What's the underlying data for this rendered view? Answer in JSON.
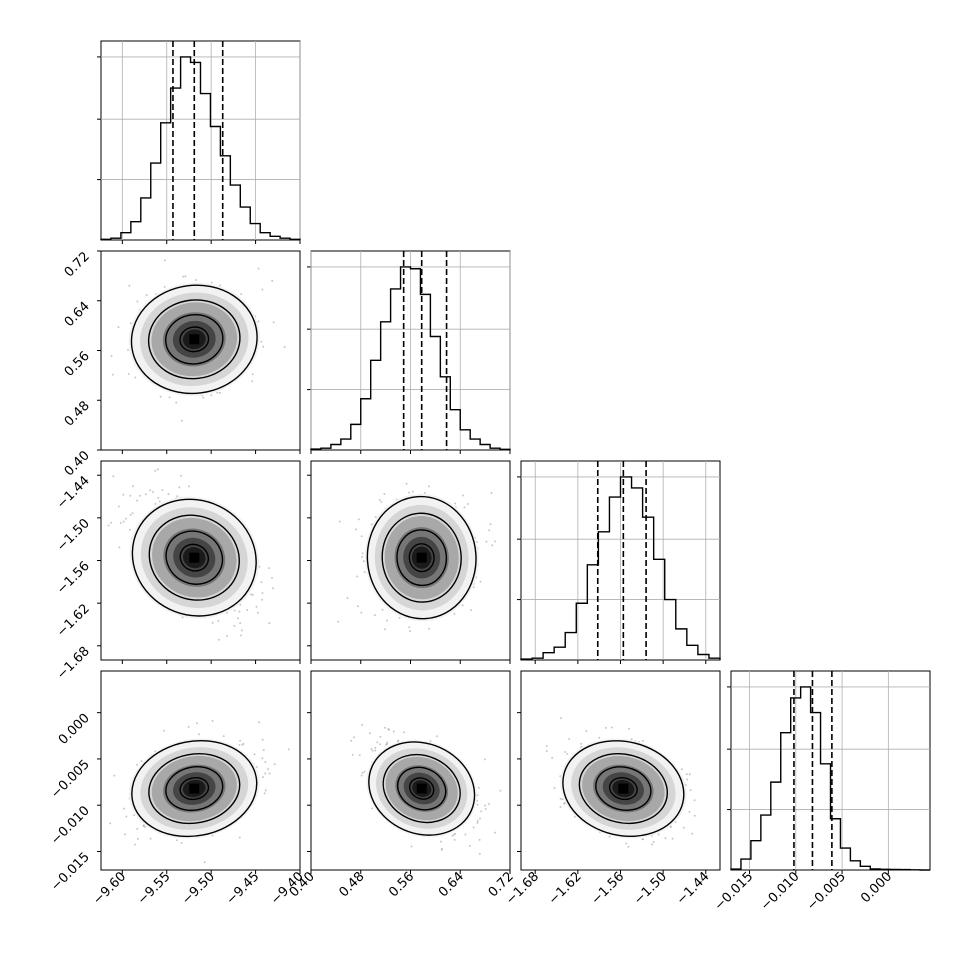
{
  "chart_data": {
    "type": "corner",
    "parameters": [
      {
        "axis_ticks": [
          -9.6,
          -9.55,
          -9.5,
          -9.45,
          -9.4
        ],
        "tick_labels": [
          "−9.60",
          "−9.55",
          "−9.50",
          "−9.45",
          "−9.40"
        ],
        "range": [
          -9.624,
          -9.4
        ],
        "quantiles": [
          -9.543,
          -9.519,
          -9.487
        ],
        "hist_y_ticks": [
          0.33,
          0.66,
          1.0
        ]
      },
      {
        "axis_ticks": [
          0.4,
          0.48,
          0.56,
          0.64,
          0.72
        ],
        "tick_labels": [
          "0.40",
          "0.48",
          "0.56",
          "0.64",
          "0.72"
        ],
        "range": [
          0.4,
          0.72
        ],
        "quantiles": [
          0.549,
          0.578,
          0.618
        ],
        "hist_y_ticks": [
          0.33,
          0.66,
          1.0
        ]
      },
      {
        "axis_ticks": [
          -1.68,
          -1.62,
          -1.56,
          -1.5,
          -1.44
        ],
        "tick_labels": [
          "−1.68",
          "−1.62",
          "−1.56",
          "−1.50",
          "−1.44"
        ],
        "range": [
          -1.7,
          -1.42
        ],
        "quantiles": [
          -1.592,
          -1.556,
          -1.524
        ],
        "hist_y_ticks": [
          0.33,
          0.66,
          1.0
        ]
      },
      {
        "axis_ticks": [
          -0.015,
          -0.01,
          -0.005,
          0.0
        ],
        "tick_labels": [
          "−0.015",
          "−0.010",
          "−0.005",
          "0.000"
        ],
        "range": [
          -0.017,
          0.0045
        ],
        "quantiles": [
          -0.0102,
          -0.0082,
          -0.0061
        ],
        "hist_y_ticks": [
          0.33,
          0.66,
          1.0
        ]
      }
    ],
    "histograms": [
      [
        0.004,
        0.01,
        0.04,
        0.1,
        0.23,
        0.42,
        0.64,
        0.83,
        1.0,
        0.97,
        0.8,
        0.62,
        0.46,
        0.3,
        0.18,
        0.09,
        0.04,
        0.02,
        0.01,
        0.004
      ],
      [
        0.005,
        0.01,
        0.03,
        0.06,
        0.14,
        0.28,
        0.49,
        0.7,
        0.88,
        1.0,
        0.99,
        0.85,
        0.62,
        0.4,
        0.22,
        0.11,
        0.06,
        0.03,
        0.01,
        0.004
      ],
      [
        0.005,
        0.01,
        0.04,
        0.07,
        0.15,
        0.31,
        0.52,
        0.7,
        0.89,
        1.0,
        0.94,
        0.78,
        0.55,
        0.33,
        0.17,
        0.08,
        0.03,
        0.01
      ],
      [
        0.005,
        0.06,
        0.16,
        0.3,
        0.48,
        0.75,
        0.94,
        1.0,
        0.86,
        0.58,
        0.28,
        0.12,
        0.05,
        0.02,
        0.006,
        0.004,
        0.003,
        0.002,
        0.001,
        0.0
      ]
    ],
    "correlations": {
      "1-0": 0.15,
      "2-0": -0.5,
      "2-1": 0.06,
      "3-0": 0.25,
      "3-1": -0.5,
      "3-2": -0.3
    },
    "grid": true
  }
}
